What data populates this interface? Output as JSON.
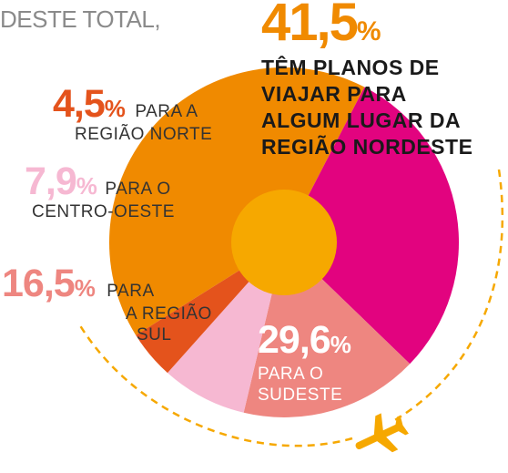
{
  "intro": "DESTE TOTAL,",
  "labels": {
    "nordeste": {
      "value": "41,5",
      "sign": "%",
      "line1": "TÊM PLANOS DE",
      "line2": "VIAJAR PARA",
      "line3": "ALGUM LUGAR DA",
      "line4": "REGIÃO NORDESTE"
    },
    "norte": {
      "value": "4,5",
      "sign": "%",
      "line1": "PARA A",
      "line2": "REGIÃO NORTE"
    },
    "centro_oeste": {
      "value": "7,9",
      "sign": "%",
      "line1": "PARA O",
      "line2": "CENTRO-OESTE"
    },
    "sul": {
      "value": "16,5",
      "sign": "%",
      "line1": "PARA",
      "line2": "A REGIÃO",
      "line3": "SUL"
    },
    "sudeste": {
      "value": "29,6",
      "sign": "%",
      "line1": "PARA O",
      "line2": "SUDESTE"
    }
  },
  "colors": {
    "nordeste": "#f08a00",
    "norte": "#e4531c",
    "centro_oeste": "#f6b8d2",
    "sul": "#ee8680",
    "sudeste": "#e2037f",
    "center": "#f6a800",
    "path": "#f6a800",
    "plane": "#f6a800"
  },
  "icons": {
    "plane": "airplane-icon"
  },
  "chart_data": {
    "type": "pie",
    "title": "",
    "unit": "%",
    "slices": [
      {
        "label": "REGIÃO NORDESTE",
        "value": 41.5
      },
      {
        "label": "SUDESTE",
        "value": 29.6
      },
      {
        "label": "REGIÃO SUL",
        "value": 16.5
      },
      {
        "label": "CENTRO-OESTE",
        "value": 7.9
      },
      {
        "label": "REGIÃO NORTE",
        "value": 4.5
      }
    ]
  }
}
